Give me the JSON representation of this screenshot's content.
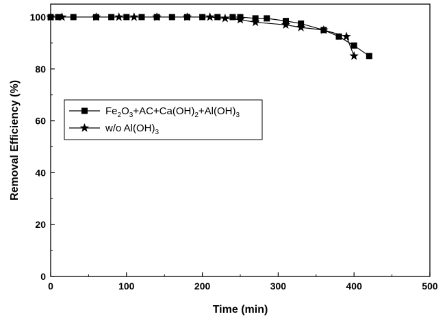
{
  "chart_data": {
    "type": "line",
    "xlabel": "Time (min)",
    "ylabel": "Removal Efficiency (%)",
    "xlim": [
      0,
      500
    ],
    "ylim": [
      0,
      105
    ],
    "x_ticks": [
      "0",
      "100",
      "200",
      "300",
      "400",
      "500"
    ],
    "y_ticks": [
      "0",
      "20",
      "40",
      "60",
      "80",
      "100"
    ],
    "grid": false,
    "legend_placement": "middle-left",
    "series": [
      {
        "name_parts": [
          [
            "Fe",
            ""
          ],
          [
            "2",
            "sub"
          ],
          [
            "O",
            ""
          ],
          [
            "3",
            "sub"
          ],
          [
            "+AC+Ca(OH)",
            ""
          ],
          [
            "2",
            "sub"
          ],
          [
            "+Al(OH)",
            ""
          ],
          [
            "3",
            "sub"
          ]
        ],
        "marker": "square",
        "color": "#000000",
        "x": [
          0,
          10,
          30,
          60,
          80,
          100,
          120,
          140,
          160,
          180,
          200,
          220,
          240,
          250,
          270,
          285,
          310,
          330,
          360,
          380,
          400,
          420
        ],
        "y": [
          100,
          100,
          100,
          100,
          100,
          100,
          100,
          100,
          100,
          100,
          100,
          100,
          100,
          100,
          99.5,
          99.5,
          98.5,
          97.5,
          95,
          92.5,
          89,
          85
        ]
      },
      {
        "name_parts": [
          [
            "w/o Al(OH)",
            ""
          ],
          [
            "3",
            "sub"
          ]
        ],
        "marker": "star",
        "color": "#000000",
        "x": [
          0,
          15,
          60,
          90,
          110,
          140,
          180,
          210,
          230,
          250,
          270,
          310,
          330,
          360,
          390,
          400
        ],
        "y": [
          100,
          100,
          100,
          100,
          100,
          100,
          100,
          100,
          99.5,
          99,
          98,
          97,
          96,
          95,
          92.5,
          85
        ]
      }
    ]
  }
}
